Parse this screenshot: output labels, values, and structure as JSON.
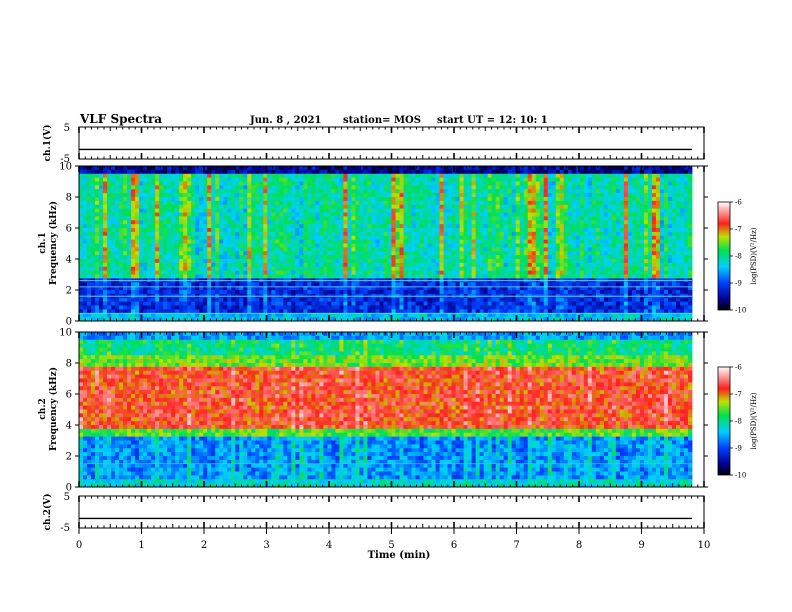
{
  "header": {
    "title": "VLF Spectra",
    "date": "Jun. 8 , 2021",
    "station": "station= MOS",
    "start_ut": "start UT =  12: 10: 1"
  },
  "colorbar": {
    "label": "log(PSD)(V²/Hz)",
    "ticks": [
      "-6",
      "-7",
      "-8",
      "-9",
      "-10"
    ],
    "range": [
      -10,
      -6
    ]
  },
  "chart_data": [
    {
      "type": "line",
      "name_label": "ch.1(V)",
      "ylim": [
        -5,
        5
      ],
      "yticks": [
        "5",
        "-5"
      ],
      "description_value": "flat signal near -2 V",
      "x": [
        0,
        10
      ],
      "y": [
        -2,
        -2
      ]
    },
    {
      "type": "heatmap",
      "ylabel_line1": "ch.1",
      "ylabel_line2": "Frequency (kHz)",
      "ylim": [
        0,
        10
      ],
      "yticks": [
        "0",
        "2",
        "4",
        "6",
        "8",
        "10"
      ],
      "band_frequencies_khz": [
        0.5,
        1.6,
        2.2,
        2.6
      ],
      "colorbar_ref": "log(PSD)"
    },
    {
      "type": "heatmap",
      "ylabel_line1": "ch.2",
      "ylabel_line2": "Frequency (kHz)",
      "ylim": [
        0,
        10
      ],
      "yticks": [
        "0",
        "2",
        "4",
        "6",
        "8",
        "10"
      ],
      "band_frequencies_khz": [
        1.5
      ],
      "colorbar_ref": "log(PSD)"
    },
    {
      "type": "line",
      "name_label": "ch.2(V)",
      "ylim": [
        -5,
        5
      ],
      "yticks": [
        "5",
        "-5"
      ],
      "x": [
        0,
        10
      ],
      "y": [
        -2,
        -2
      ]
    }
  ],
  "xaxis": {
    "label": "Time (min)",
    "ticks": [
      "0",
      "1",
      "2",
      "3",
      "4",
      "5",
      "6",
      "7",
      "8",
      "9",
      "10"
    ],
    "range": [
      0,
      10
    ]
  }
}
